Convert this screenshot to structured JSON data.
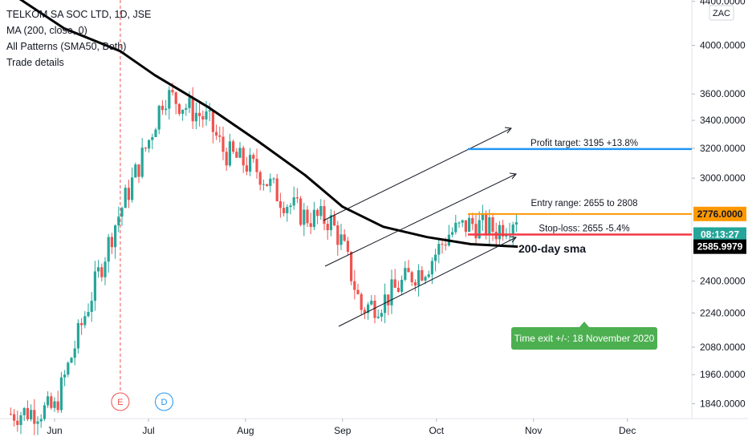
{
  "legend": {
    "symbol": "TELKOM SA SOC LTD, 1D, JSE",
    "ma": "MA (200, close, 0)",
    "patterns": "All Patterns (SMA50, Both)",
    "trade": "Trade details"
  },
  "axis": {
    "currency": "ZAC",
    "y_ticks": [
      "4400.0000",
      "4000.0000",
      "3600.0000",
      "3400.0000",
      "3200.0000",
      "3000.0000",
      "2400.0000",
      "2240.0000",
      "2080.0000",
      "1960.0000",
      "1840.0000"
    ],
    "x_ticks": [
      "Jun",
      "Jul",
      "Aug",
      "Sep",
      "Oct",
      "Nov",
      "Dec"
    ]
  },
  "price_tags": {
    "entry": "2776.0000",
    "countdown": "08:13:27",
    "sma": "2585.9979"
  },
  "annotations": {
    "profit_target": "Profit target: 3195 +13.8%",
    "entry_range": "Entry range: 2655 to 2808",
    "stop_loss": "Stop-loss: 2655 -5.4%",
    "sma_label": "200-day sma",
    "time_exit": "Time exit +/-: 18 November 2020",
    "earnings_marker": "E",
    "dividend_marker": "D"
  },
  "colors": {
    "up": "#26a69a",
    "down": "#ef5350",
    "target": "#2196f3",
    "entry": "#ff9800",
    "stop": "#f23645",
    "sma": "#000000",
    "exit_box": "#4caf50"
  },
  "chart_data": {
    "type": "candlestick",
    "series_name": "TELKOM SA SOC LTD, 1D, JSE",
    "x_range": [
      "2020-05-18",
      "2020-12-15"
    ],
    "y_scale": "log",
    "y_range": [
      1780,
      4500
    ],
    "sma_200": [
      [
        "2020-05-18",
        4480
      ],
      [
        "2020-06-04",
        4150
      ],
      [
        "2020-06-22",
        3950
      ],
      [
        "2020-07-03",
        3750
      ],
      [
        "2020-07-20",
        3500
      ],
      [
        "2020-08-05",
        3250
      ],
      [
        "2020-08-20",
        3020
      ],
      [
        "2020-09-01",
        2820
      ],
      [
        "2020-09-14",
        2700
      ],
      [
        "2020-09-28",
        2640
      ],
      [
        "2020-10-12",
        2600
      ],
      [
        "2020-10-27",
        2586
      ]
    ],
    "levels": {
      "profit_target": 3195,
      "entry_high": 2808,
      "entry_low": 2655,
      "stop_loss": 2655,
      "last_price": 2776,
      "sma_value": 2585.9979
    },
    "markers": [
      {
        "label": "E",
        "date": "2020-06-22"
      },
      {
        "label": "D",
        "date": "2020-07-06"
      }
    ]
  }
}
